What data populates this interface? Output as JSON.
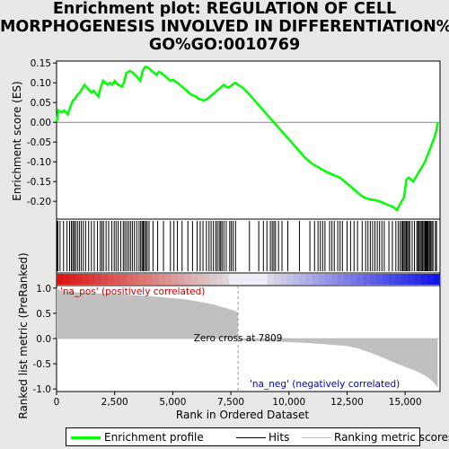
{
  "title": {
    "line1": "Enrichment plot: REGULATION OF CELL",
    "line2": "MORPHOGENESIS INVOLVED IN DIFFERENTIATION%",
    "line3": "GO%GO:0010769"
  },
  "chart_data": [
    {
      "type": "line",
      "name": "enrichment-profile",
      "ylabel": "Enrichment score (ES)",
      "xlim": [
        0,
        16500
      ],
      "ylim": [
        -0.245,
        0.155
      ],
      "yticks": [
        -0.2,
        -0.15,
        -0.1,
        -0.05,
        0.0,
        0.05,
        0.1,
        0.15
      ],
      "ytick_labels": [
        "-0.20",
        "-0.15",
        "-0.10",
        "-0.05",
        "0.00",
        "0.05",
        "0.10",
        "0.15"
      ],
      "color": "#00ff00",
      "x": [
        0,
        80,
        200,
        330,
        480,
        600,
        700,
        800,
        900,
        1000,
        1100,
        1200,
        1350,
        1500,
        1600,
        1700,
        1800,
        1900,
        2000,
        2100,
        2200,
        2300,
        2400,
        2500,
        2650,
        2800,
        2900,
        3000,
        3150,
        3300,
        3450,
        3600,
        3700,
        3800,
        3900,
        4000,
        4100,
        4200,
        4300,
        4400,
        4500,
        4600,
        4700,
        4800,
        4900,
        5000,
        5200,
        5400,
        5600,
        5800,
        6000,
        6100,
        6200,
        6350,
        6500,
        6600,
        6700,
        6800,
        6900,
        7000,
        7100,
        7200,
        7300,
        7400,
        7500,
        7600,
        7700,
        7809,
        8000,
        8300,
        8600,
        8900,
        9200,
        9500,
        9800,
        10100,
        10400,
        10700,
        11000,
        11300,
        11600,
        11900,
        12200,
        12500,
        12800,
        13100,
        13300,
        13500,
        13700,
        13900,
        14100,
        14300,
        14500,
        14650,
        14750,
        14850,
        14950,
        15050,
        15150,
        15250,
        15350,
        15450,
        15550,
        15650,
        15750,
        15850,
        15950,
        16050,
        16150,
        16250,
        16350,
        16400
      ],
      "y": [
        0.0,
        0.03,
        0.025,
        0.03,
        0.02,
        0.04,
        0.055,
        0.06,
        0.07,
        0.075,
        0.085,
        0.095,
        0.085,
        0.075,
        0.08,
        0.072,
        0.065,
        0.09,
        0.105,
        0.1,
        0.095,
        0.1,
        0.095,
        0.105,
        0.095,
        0.09,
        0.1,
        0.125,
        0.13,
        0.125,
        0.115,
        0.105,
        0.13,
        0.14,
        0.14,
        0.135,
        0.13,
        0.125,
        0.12,
        0.128,
        0.125,
        0.12,
        0.115,
        0.11,
        0.105,
        0.108,
        0.1,
        0.09,
        0.08,
        0.07,
        0.065,
        0.06,
        0.058,
        0.055,
        0.06,
        0.065,
        0.07,
        0.075,
        0.08,
        0.085,
        0.09,
        0.095,
        0.09,
        0.088,
        0.092,
        0.097,
        0.1,
        0.095,
        0.088,
        0.07,
        0.05,
        0.03,
        0.01,
        -0.01,
        -0.03,
        -0.05,
        -0.07,
        -0.09,
        -0.105,
        -0.115,
        -0.125,
        -0.133,
        -0.14,
        -0.155,
        -0.17,
        -0.185,
        -0.192,
        -0.195,
        -0.197,
        -0.2,
        -0.205,
        -0.21,
        -0.215,
        -0.222,
        -0.21,
        -0.2,
        -0.19,
        -0.145,
        -0.14,
        -0.145,
        -0.15,
        -0.14,
        -0.13,
        -0.12,
        -0.11,
        -0.1,
        -0.085,
        -0.07,
        -0.055,
        -0.04,
        -0.02,
        0.0
      ]
    },
    {
      "type": "hits",
      "name": "hits",
      "xlim": [
        0,
        16500
      ],
      "positions": [
        20,
        60,
        150,
        300,
        450,
        560,
        640,
        700,
        760,
        820,
        900,
        980,
        1060,
        1150,
        1250,
        1380,
        1500,
        1620,
        1760,
        1880,
        1950,
        2020,
        2130,
        2240,
        2380,
        2480,
        2560,
        2650,
        2760,
        2870,
        2940,
        3020,
        3100,
        3180,
        3260,
        3350,
        3450,
        3550,
        3620,
        3680,
        3730,
        3780,
        3840,
        3900,
        3980,
        4150,
        4350,
        4600,
        4900,
        5050,
        5200,
        5400,
        5650,
        5850,
        6050,
        6180,
        6300,
        6450,
        6560,
        6650,
        6750,
        6850,
        6920,
        7000,
        7060,
        7120,
        7200,
        7300,
        7450,
        7520,
        7600,
        7700,
        8300,
        8700,
        8900,
        9050,
        9200,
        9280,
        9350,
        9420,
        9550,
        9700,
        9950,
        10450,
        10900,
        11100,
        11250,
        11350,
        11450,
        11550,
        11750,
        11850,
        11950,
        12100,
        12200,
        12300,
        12500,
        12650,
        12800,
        12950,
        13150,
        13300,
        13400,
        13500,
        13600,
        13700,
        13800,
        13900,
        14000,
        14100,
        14300,
        14450,
        14600,
        14700,
        14780,
        14850,
        14900,
        14950,
        15000,
        15050,
        15100,
        15150,
        15200,
        15300,
        15400,
        15500,
        15550,
        15600,
        15650,
        15700,
        15750,
        15800,
        15850,
        15880,
        15920,
        15960,
        16000,
        16050,
        16100,
        16150,
        16200,
        16300,
        16350
      ]
    },
    {
      "type": "area",
      "name": "ranking-metric",
      "ylabel": "Ranked list metric (PreRanked)",
      "xlabel": "Rank in Ordered Dataset",
      "xlim": [
        0,
        16500
      ],
      "ylim": [
        -1.05,
        1.05
      ],
      "yticks": [
        -1.0,
        -0.5,
        0.0,
        0.5,
        1.0
      ],
      "ytick_labels": [
        "-1.0",
        "-0.5",
        "0.0",
        "0.5",
        "1.0"
      ],
      "xticks": [
        0,
        2500,
        5000,
        7500,
        10000,
        12500,
        15000
      ],
      "xtick_labels": [
        "0",
        "2,500",
        "5,000",
        "7,500",
        "10,000",
        "12,500",
        "15,000"
      ],
      "fill_color": "#c0c0c0",
      "x": [
        0,
        150,
        500,
        1000,
        2000,
        3000,
        4000,
        5000,
        5500,
        6000,
        6500,
        6800,
        7000,
        7300,
        7600,
        7800,
        7809,
        7900,
        8500,
        9500,
        10500,
        11500,
        12500,
        13000,
        13500,
        14000,
        14500,
        15000,
        15500,
        15800,
        16000,
        16200,
        16400
      ],
      "y": [
        1.0,
        0.95,
        0.93,
        0.91,
        0.89,
        0.87,
        0.84,
        0.8,
        0.78,
        0.74,
        0.7,
        0.67,
        0.64,
        0.6,
        0.56,
        0.52,
        0.0,
        -0.04,
        -0.05,
        -0.06,
        -0.08,
        -0.11,
        -0.15,
        -0.2,
        -0.28,
        -0.37,
        -0.47,
        -0.56,
        -0.65,
        -0.72,
        -0.78,
        -0.86,
        -0.97
      ],
      "zero_cross_label": "Zero cross at 7809",
      "zero_cross": 7809,
      "pos_label": "'na_pos' (positively correlated)",
      "neg_label": "'na_neg' (negatively correlated)"
    }
  ],
  "legend": {
    "items": [
      {
        "label": "Enrichment profile",
        "color": "#00ff00"
      },
      {
        "label": "Hits",
        "color": "#000000"
      },
      {
        "label": "Ranking metric scores",
        "color": "#c0c0c0"
      }
    ]
  }
}
